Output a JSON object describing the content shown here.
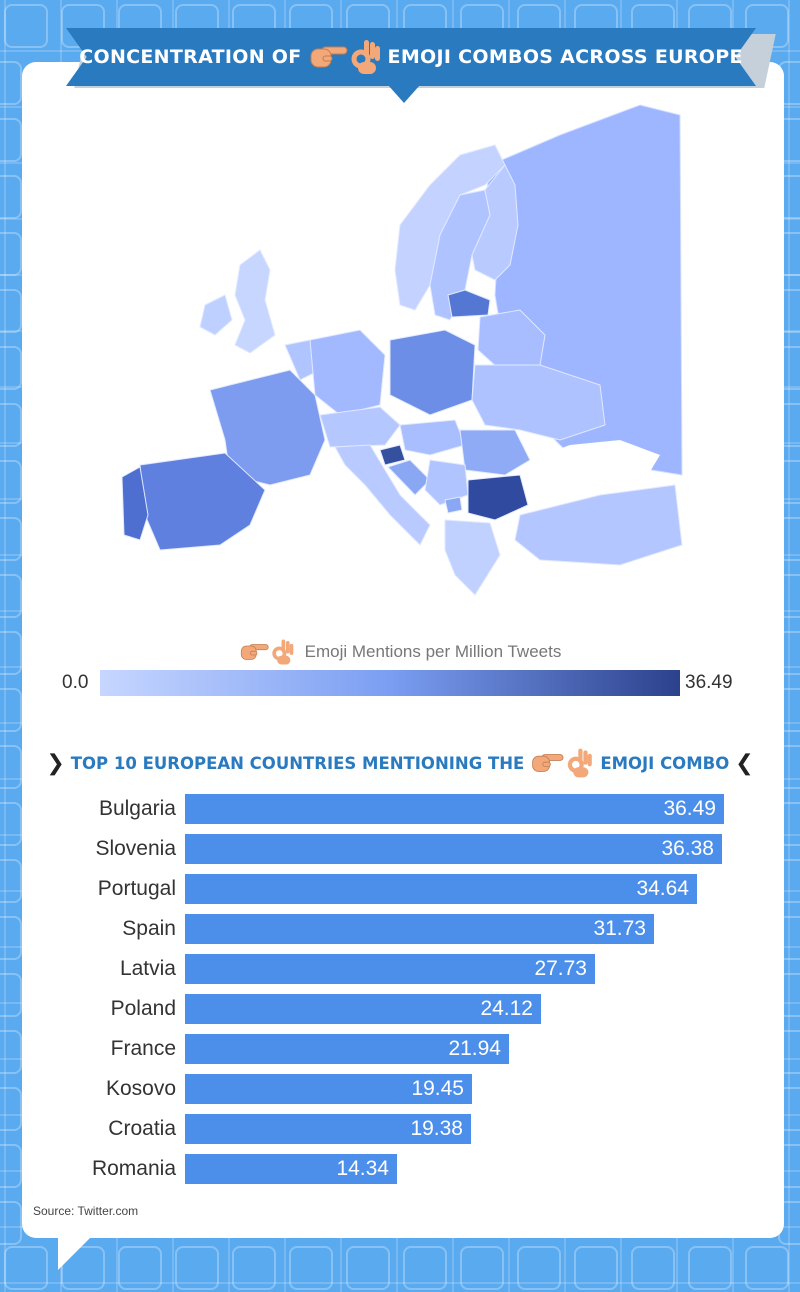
{
  "title": {
    "before": "CONCENTRATION OF",
    "after": "EMOJI COMBOS ACROSS EUROPE"
  },
  "icons": {
    "pointing_hand": "pointing-right-hand-emoji",
    "ok_hand": "ok-hand-emoji"
  },
  "legend": {
    "label": "Emoji Mentions per Million Tweets",
    "min": "0.0",
    "max": "36.49",
    "colors": [
      "#c6d6ff",
      "#7b9ef2",
      "#2c418c"
    ]
  },
  "subheader": {
    "before": "TOP 10 EUROPEAN COUNTRIES MENTIONING THE",
    "after": "EMOJI COMBO"
  },
  "source": "Source: Twitter.com",
  "colors": {
    "background": "#5aaaf0",
    "ribbon": "#2a7ac0",
    "bar": "#4c8fea",
    "map_light": "#c6d6ff",
    "map_dark": "#2c418c"
  },
  "chart_data": [
    {
      "type": "heatmap",
      "title": "CONCENTRATION OF EMOJI COMBOS ACROSS EUROPE",
      "legend_label": "Emoji Mentions per Million Tweets",
      "range": [
        0.0,
        36.49
      ],
      "highlighted_regions": [
        "Bulgaria",
        "Slovenia",
        "Portugal",
        "Spain",
        "Latvia",
        "Poland",
        "France",
        "Kosovo",
        "Croatia",
        "Romania"
      ]
    },
    {
      "type": "bar",
      "orientation": "horizontal",
      "title": "TOP 10 EUROPEAN COUNTRIES MENTIONING THE EMOJI COMBO",
      "categories": [
        "Bulgaria",
        "Slovenia",
        "Portugal",
        "Spain",
        "Latvia",
        "Poland",
        "France",
        "Kosovo",
        "Croatia",
        "Romania"
      ],
      "values": [
        36.49,
        36.38,
        34.64,
        31.73,
        27.73,
        24.12,
        21.94,
        19.45,
        19.38,
        14.34
      ],
      "value_labels": [
        "36.49",
        "36.38",
        "34.64",
        "31.73",
        "27.73",
        "24.12",
        "21.94",
        "19.45",
        "19.38",
        "14.34"
      ],
      "xlim": [
        0,
        36.49
      ],
      "legend": "none",
      "grid": false
    }
  ]
}
